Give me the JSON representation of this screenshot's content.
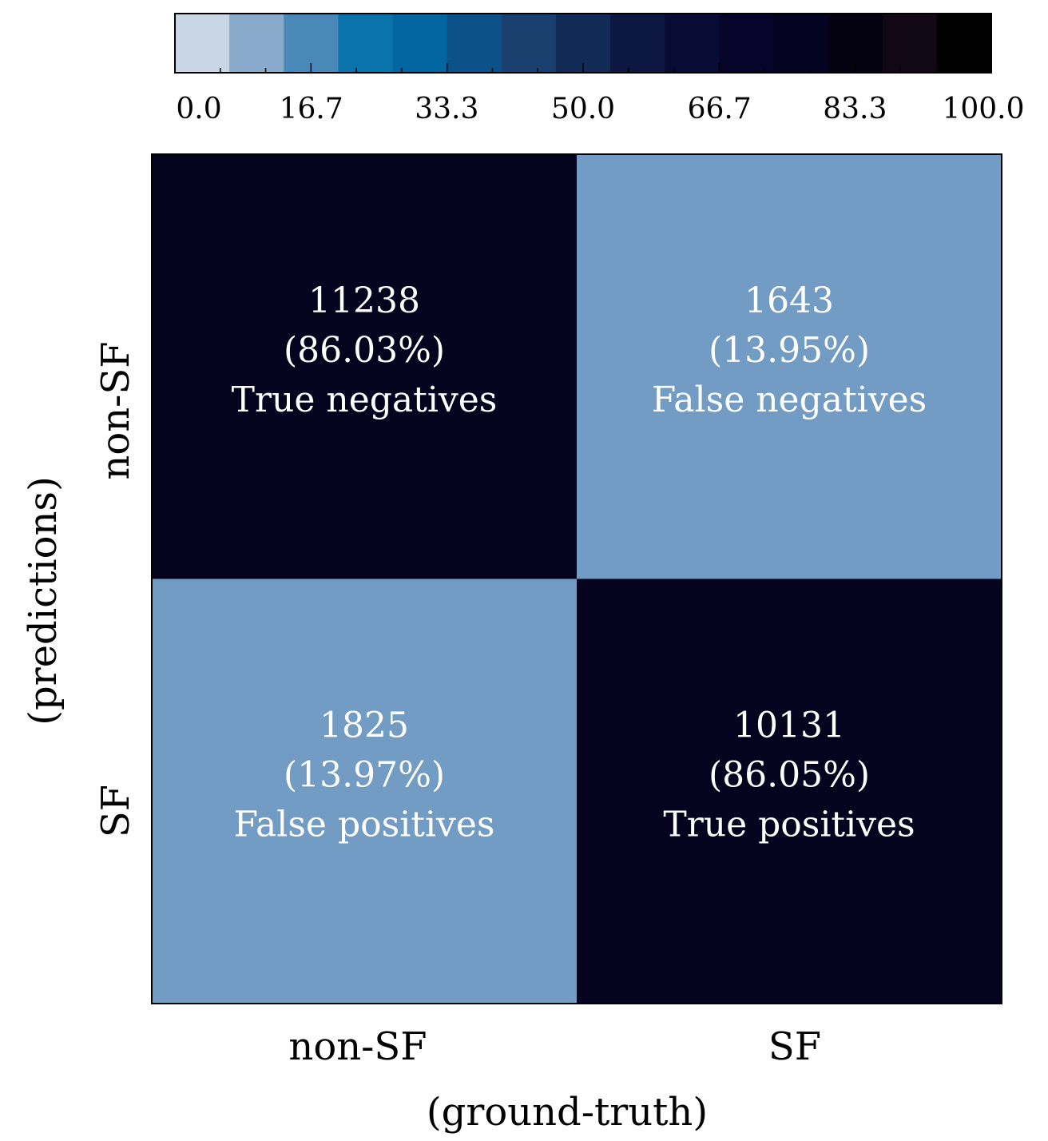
{
  "chart_data": {
    "type": "heatmap",
    "title": "",
    "xlabel": "(ground-truth)",
    "ylabel": "(predictions)",
    "x_categories": [
      "non-SF",
      "SF"
    ],
    "y_categories": [
      "non-SF",
      "SF"
    ],
    "cells": [
      {
        "row": 0,
        "col": 0,
        "count": "11238",
        "percent_label": "(86.03%)",
        "percent": 86.03,
        "label": "True negatives"
      },
      {
        "row": 0,
        "col": 1,
        "count": "1643",
        "percent_label": "(13.95%)",
        "percent": 13.95,
        "label": "False negatives"
      },
      {
        "row": 1,
        "col": 0,
        "count": "1825",
        "percent_label": "(13.97%)",
        "percent": 13.97,
        "label": "False positives"
      },
      {
        "row": 1,
        "col": 1,
        "count": "10131",
        "percent_label": "(86.05%)",
        "percent": 86.05,
        "label": "True positives"
      }
    ],
    "colorbar": {
      "range": [
        0,
        100
      ],
      "tick_labels": [
        "0.0",
        "16.7",
        "33.3",
        "50.0",
        "66.7",
        "83.3",
        "100.0"
      ],
      "tick_values": [
        0.0,
        16.7,
        33.3,
        50.0,
        66.7,
        83.3,
        100.0
      ],
      "colors": [
        "#c9d6e3",
        "#8aaacb",
        "#4a88b8",
        "#0a74aa",
        "#0466a0",
        "#0c5288",
        "#19406e",
        "#122a56",
        "#0c1842",
        "#080c34",
        "#06042a",
        "#040322",
        "#040111",
        "#110715",
        "#000000"
      ]
    },
    "cell_colors": {
      "high": "#06031f",
      "low": "#729cc4"
    },
    "text_color": "#ffffff",
    "axis_color": "#000000"
  }
}
